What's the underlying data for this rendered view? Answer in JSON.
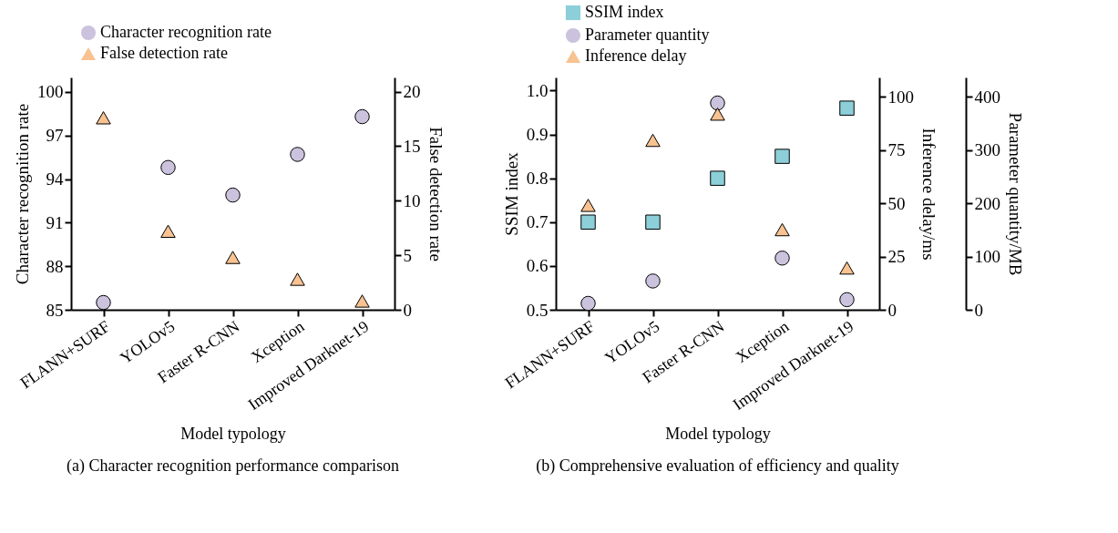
{
  "chart_data": [
    {
      "type": "scatter",
      "title": "(a) Character recognition performance comparison",
      "xlabel": "Model typology",
      "ylabel": "Character recognition rate",
      "y2label": "False detection rate",
      "legend": "top left",
      "categories": [
        "FLANN+SURF",
        "YOLOv5",
        "Faster R-CNN",
        "Xception",
        "Improved Darknet-19"
      ],
      "ylim": [
        85,
        101
      ],
      "yticks": [
        85,
        88,
        91,
        94,
        97,
        100
      ],
      "y2lim": [
        0,
        21.3
      ],
      "y2ticks": [
        0,
        5,
        10,
        15,
        20
      ],
      "series": [
        {
          "name": "Character recognition rate",
          "color": "#cbc3dd",
          "marker": "circle",
          "values": [
            85.5,
            94.8,
            92.9,
            95.7,
            98.3
          ]
        },
        {
          "name": "False detection rate",
          "color": "#f8c291",
          "marker": "triangle",
          "axis": "y2",
          "values": [
            17.6,
            7.2,
            4.8,
            2.8,
            0.8
          ]
        }
      ]
    },
    {
      "type": "scatter",
      "title": "(b) Comprehensive evaluation of efficiency and quality",
      "xlabel": "Model typology",
      "ylabel": "SSIM index",
      "y2label": "Inference delay/ms",
      "y3label": "Parameter quantity/MB",
      "legend": "top left",
      "categories": [
        "FLANN+SURF",
        "YOLOv5",
        "Faster R-CNN",
        "Xception",
        "Improved Darknet-19"
      ],
      "ylim": [
        0.5,
        1.03
      ],
      "yticks": [
        {
          "value": 0.5,
          "label": "0.5"
        },
        {
          "value": 0.6,
          "label": "0.6"
        },
        {
          "value": 0.7,
          "label": "0.7"
        },
        {
          "value": 0.8,
          "label": "0.8"
        },
        {
          "value": 0.9,
          "label": "0.9"
        },
        {
          "value": 1.0,
          "label": "1.0"
        }
      ],
      "y2lim": [
        0,
        109
      ],
      "y2ticks": [
        0,
        25,
        50,
        75,
        100
      ],
      "y3lim": [
        0,
        436
      ],
      "y3ticks": [
        0,
        100,
        200,
        300,
        400
      ],
      "series": [
        {
          "name": "SSIM index",
          "color": "#8ccfd9",
          "marker": "square",
          "values": [
            0.7,
            0.7,
            0.8,
            0.85,
            0.96
          ]
        },
        {
          "name": "Parameter quantity",
          "color": "#cbc3dd",
          "marker": "circle",
          "axis": "y3",
          "values": [
            12,
            54,
            388,
            97,
            19
          ]
        },
        {
          "name": "Inference delay",
          "color": "#f8c291",
          "marker": "triangle",
          "axis": "y2",
          "values": [
            49,
            79.5,
            91.8,
            37.6,
            19.6
          ]
        }
      ]
    }
  ]
}
